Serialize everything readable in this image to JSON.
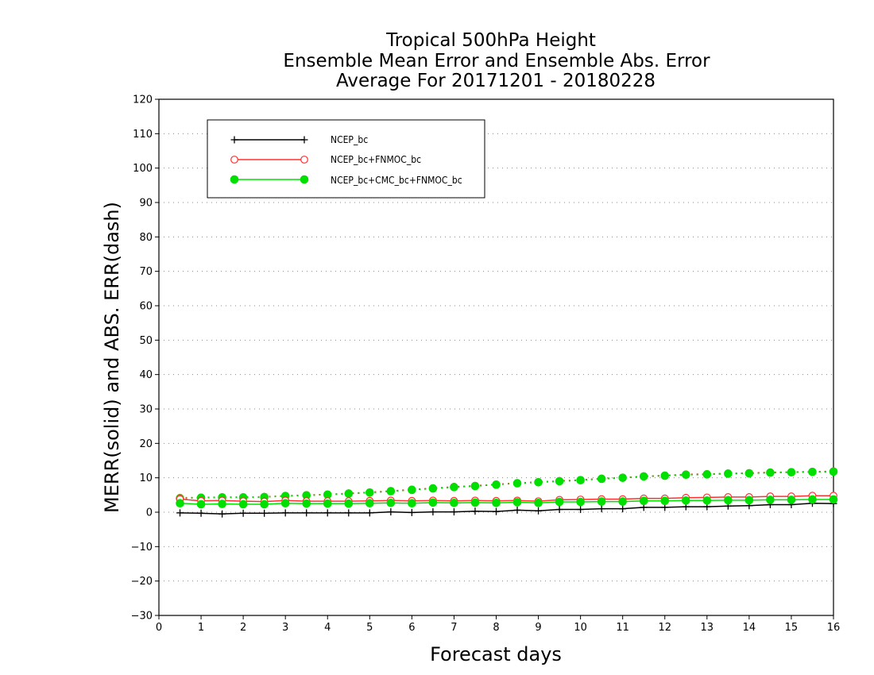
{
  "chart_data": {
    "type": "line",
    "title_lines": [
      "Tropical 500hPa Height",
      "Ensemble Mean Error and Ensemble Abs. Error",
      "Average For 20171201 - 20180228"
    ],
    "xlabel": "Forecast days",
    "ylabel": "MERR(solid) and ABS. ERR(dash)",
    "xlim": [
      0,
      16
    ],
    "ylim": [
      -30,
      120
    ],
    "xticks": [
      "0",
      "1",
      "2",
      "3",
      "4",
      "5",
      "6",
      "7",
      "8",
      "9",
      "10",
      "11",
      "12",
      "13",
      "14",
      "15",
      "16"
    ],
    "yticks": [
      "120",
      "110",
      "100",
      "90",
      "80",
      "70",
      "60",
      "50",
      "40",
      "30",
      "20",
      "10",
      "0",
      "−10",
      "−20",
      "−30"
    ],
    "ytick_values": [
      120,
      110,
      100,
      90,
      80,
      70,
      60,
      50,
      40,
      30,
      20,
      10,
      0,
      -10,
      -20,
      -30
    ],
    "grid": true,
    "legend_position": "top-left",
    "x": [
      0.5,
      1,
      1.5,
      2,
      2.5,
      3,
      3.5,
      4,
      4.5,
      5,
      5.5,
      6,
      6.5,
      7,
      7.5,
      8,
      8.5,
      9,
      9.5,
      10,
      10.5,
      11,
      11.5,
      12,
      12.5,
      13,
      13.5,
      14,
      14.5,
      15,
      15.5,
      16
    ],
    "series": [
      {
        "name": "NCEP_bc",
        "color": "#000000",
        "marker": "plus",
        "merr": [
          -0.2,
          -0.3,
          -0.5,
          -0.3,
          -0.3,
          -0.2,
          -0.2,
          -0.2,
          -0.2,
          -0.2,
          0.1,
          -0.1,
          0.1,
          0.1,
          0.3,
          0.2,
          0.6,
          0.4,
          0.8,
          0.8,
          1.0,
          1.0,
          1.4,
          1.4,
          1.6,
          1.6,
          1.8,
          1.9,
          2.2,
          2.2,
          2.6,
          2.5
        ],
        "abs_err": [
          4.0,
          4.2,
          4.3,
          4.3,
          4.4,
          4.7,
          4.9,
          5.1,
          5.4,
          5.7,
          6.1,
          6.5,
          6.9,
          7.3,
          7.6,
          8.0,
          8.4,
          8.7,
          9.0,
          9.3,
          9.7,
          10.0,
          10.4,
          10.6,
          10.9,
          11.0,
          11.2,
          11.3,
          11.5,
          11.6,
          11.7,
          11.8
        ]
      },
      {
        "name": "NCEP_bc+FNMOC_bc",
        "color": "#ff3030",
        "marker": "open-circle",
        "merr": [
          3.8,
          3.3,
          3.4,
          3.2,
          3.1,
          3.4,
          3.2,
          3.2,
          3.2,
          3.3,
          3.4,
          3.3,
          3.4,
          3.3,
          3.4,
          3.3,
          3.4,
          3.2,
          3.6,
          3.7,
          3.8,
          3.8,
          4.0,
          4.0,
          4.2,
          4.3,
          4.4,
          4.4,
          4.6,
          4.6,
          4.8,
          4.8
        ],
        "abs_err": [
          4.2,
          4.3,
          4.4,
          4.4,
          4.5,
          4.8,
          5.0,
          5.2,
          5.5,
          5.8,
          6.2,
          6.6,
          7.0,
          7.4,
          7.7,
          8.1,
          8.5,
          8.8,
          9.1,
          9.4,
          9.8,
          10.1,
          10.4,
          10.7,
          11.0,
          11.1,
          11.3,
          11.4,
          11.6,
          11.7,
          11.8,
          11.9
        ]
      },
      {
        "name": "NCEP_bc+CMC_bc+FNMOC_bc",
        "color": "#00e000",
        "marker": "filled-circle",
        "merr": [
          2.6,
          2.3,
          2.4,
          2.3,
          2.3,
          2.6,
          2.5,
          2.5,
          2.5,
          2.6,
          2.7,
          2.6,
          2.8,
          2.7,
          2.8,
          2.7,
          2.9,
          2.7,
          3.0,
          3.0,
          3.1,
          3.1,
          3.3,
          3.3,
          3.4,
          3.4,
          3.5,
          3.5,
          3.6,
          3.6,
          3.7,
          3.7
        ],
        "abs_err": [
          4.0,
          4.2,
          4.3,
          4.3,
          4.4,
          4.7,
          4.9,
          5.1,
          5.4,
          5.7,
          6.1,
          6.5,
          6.9,
          7.3,
          7.6,
          8.0,
          8.4,
          8.7,
          9.0,
          9.3,
          9.7,
          10.0,
          10.4,
          10.6,
          10.9,
          11.0,
          11.2,
          11.3,
          11.5,
          11.6,
          11.7,
          11.8
        ]
      }
    ]
  }
}
